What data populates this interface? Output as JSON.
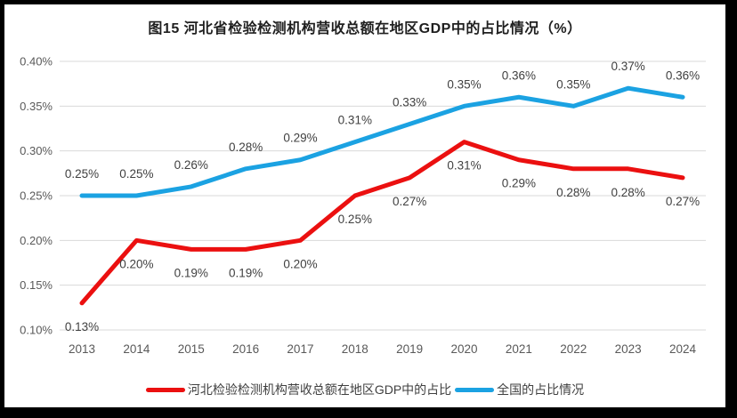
{
  "chart_data": {
    "type": "line",
    "title": "图15 河北省检验检测机构营收总额在地区GDP中的占比情况（%）",
    "categories": [
      "2013",
      "2014",
      "2015",
      "2016",
      "2017",
      "2018",
      "2019",
      "2020",
      "2021",
      "2022",
      "2023",
      "2024"
    ],
    "series": [
      {
        "name": "河北检验检测机构营收总额在地区GDP中的占比",
        "color": "#EB1010",
        "label_position": "below",
        "values": [
          0.13,
          0.2,
          0.19,
          0.19,
          0.2,
          0.25,
          0.27,
          0.31,
          0.29,
          0.28,
          0.28,
          0.27
        ],
        "labels": [
          "0.13%",
          "0.20%",
          "0.19%",
          "0.19%",
          "0.20%",
          "0.25%",
          "0.27%",
          "0.31%",
          "0.29%",
          "0.28%",
          "0.28%",
          "0.27%"
        ]
      },
      {
        "name": "全国的占比情况",
        "color": "#1BA2E2",
        "label_position": "above",
        "values": [
          0.25,
          0.25,
          0.26,
          0.28,
          0.29,
          0.31,
          0.33,
          0.35,
          0.36,
          0.35,
          0.37,
          0.36
        ],
        "labels": [
          "0.25%",
          "0.25%",
          "0.26%",
          "0.28%",
          "0.29%",
          "0.31%",
          "0.33%",
          "0.35%",
          "0.36%",
          "0.35%",
          "0.37%",
          "0.36%"
        ]
      }
    ],
    "y_ticks": [
      "0.40%",
      "0.35%",
      "0.30%",
      "0.25%",
      "0.20%",
      "0.15%",
      "0.10%"
    ],
    "ylim": [
      0.1,
      0.4
    ],
    "xlabel": "",
    "ylabel": "",
    "grid": true,
    "legend_position": "bottom",
    "colors": {
      "gridline": "#D9D9D9",
      "axis_text": "#595959",
      "data_label_text": "#404040",
      "background": "#FFFFFF",
      "frame": "#000000"
    }
  }
}
